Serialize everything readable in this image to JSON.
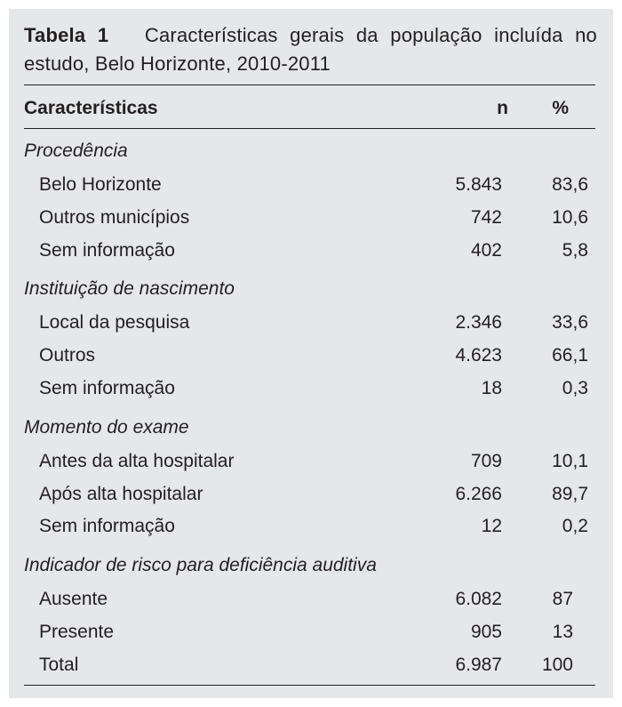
{
  "caption": {
    "label": "Tabela 1",
    "text": "Características gerais da população incluída no estudo, Belo Horizonte, 2010-2011"
  },
  "header": {
    "characteristic": "Características",
    "n": "n",
    "percent": "%"
  },
  "groups": [
    {
      "title": "Procedência",
      "rows": [
        {
          "label": "Belo Horizonte",
          "n": "5.843",
          "percent": "83,6"
        },
        {
          "label": "Outros municípios",
          "n": "742",
          "percent": "10,6"
        },
        {
          "label": "Sem informação",
          "n": "402",
          "percent": "5,8"
        }
      ]
    },
    {
      "title": "Instituição de nascimento",
      "rows": [
        {
          "label": "Local da pesquisa",
          "n": "2.346",
          "percent": "33,6"
        },
        {
          "label": "Outros",
          "n": "4.623",
          "percent": "66,1"
        },
        {
          "label": "Sem informação",
          "n": "18",
          "percent": "0,3"
        }
      ]
    },
    {
      "title": "Momento do exame",
      "rows": [
        {
          "label": "Antes da alta hospitalar",
          "n": "709",
          "percent": "10,1"
        },
        {
          "label": "Após alta hospitalar",
          "n": "6.266",
          "percent": "89,7"
        },
        {
          "label": "Sem informação",
          "n": "12",
          "percent": "0,2"
        }
      ]
    },
    {
      "title": "Indicador de risco para deficiência auditiva",
      "rows": [
        {
          "label": "Ausente",
          "n": "6.082",
          "percent": "87"
        },
        {
          "label": "Presente",
          "n": "905",
          "percent": "13"
        },
        {
          "label": "Total",
          "n": "6.987",
          "percent": "100"
        }
      ]
    }
  ]
}
